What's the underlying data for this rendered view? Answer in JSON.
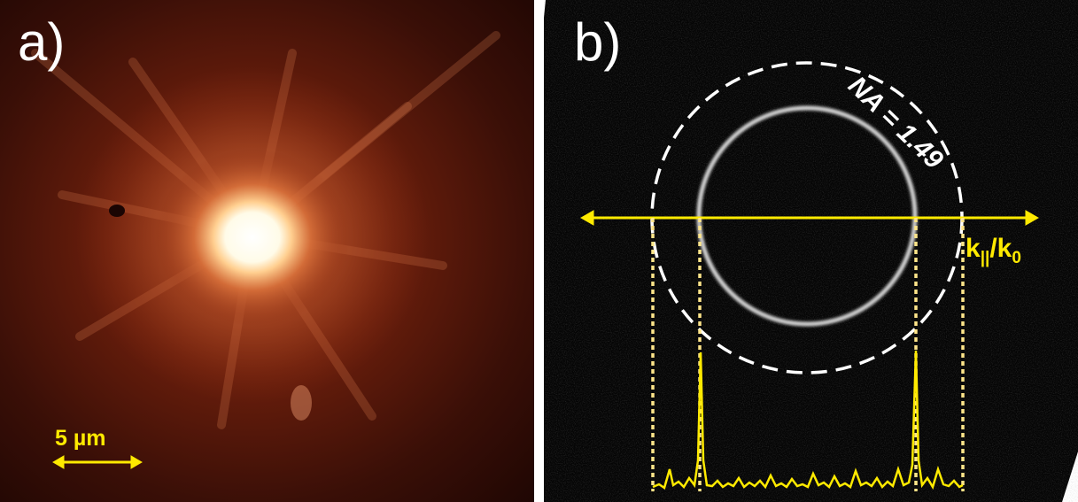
{
  "panel_a": {
    "label": "a)",
    "scale_bar_label": "5 µm",
    "colors": {
      "glow": "#ffffff",
      "mid": "#c8562a",
      "background": "#2a0a05",
      "scale_bar": "#ffea00"
    }
  },
  "panel_b": {
    "label": "b)",
    "na_label": "NA = 1.49",
    "axis_label_main": "k",
    "axis_label_sub1": "||",
    "axis_label_sep": "/k",
    "axis_label_sub2": "0",
    "colors": {
      "background": "#050505",
      "ring": "#d8d8d8",
      "dashed_circle": "#ffffff",
      "profile": "#ffea00"
    }
  }
}
